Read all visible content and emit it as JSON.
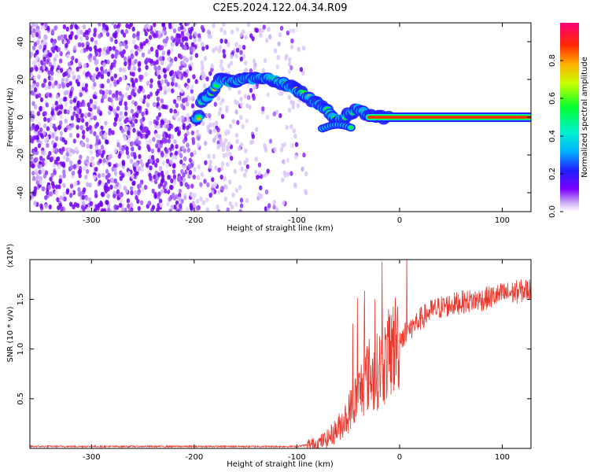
{
  "chart_data": [
    {
      "type": "heatmap",
      "title": "C2E5.2024.122.04.34.R09",
      "xlabel": "Height of straight line (km)",
      "ylabel": "Frequency (Hz)",
      "xlim": [
        -360,
        128
      ],
      "ylim": [
        -50,
        50
      ],
      "xticks": [
        -300,
        -200,
        -100,
        0,
        100
      ],
      "yticks": [
        -40,
        -20,
        0,
        20,
        40
      ],
      "colorbar": {
        "label": "Normalized spectral amplitude",
        "range": [
          0,
          1
        ],
        "ticks": [
          0.0,
          0.2,
          0.4,
          0.6,
          0.8
        ]
      },
      "ridge": {
        "x": [
          -195,
          -185,
          -175,
          -165,
          -150,
          -135,
          -120,
          -105,
          -90,
          -80,
          -70,
          -60,
          -50,
          -40,
          -30,
          -20,
          -10,
          0,
          20,
          40,
          60,
          80,
          100,
          128
        ],
        "y": [
          8,
          12,
          20,
          19,
          20,
          21,
          19,
          16,
          11,
          7,
          3,
          -3,
          2,
          4,
          1,
          0,
          0,
          0,
          0,
          0,
          0,
          0,
          0,
          0
        ]
      }
    },
    {
      "type": "line",
      "xlabel": "Height of straight line (km)",
      "ylabel": "SNR (10 * v/v)",
      "scale_note": "(x10⁴)",
      "xlim": [
        -360,
        128
      ],
      "ylim": [
        0,
        1.9
      ],
      "xticks": [
        -300,
        -200,
        -100,
        0,
        100
      ],
      "yticks": [
        0.5,
        1.0,
        1.5
      ],
      "series": [
        {
          "color": "#e8392f",
          "x": [
            -360,
            -300,
            -200,
            -150,
            -100,
            -80,
            -70,
            -60,
            -50,
            -45,
            -40,
            -35,
            -30,
            -25,
            -20,
            -15,
            -10,
            -5,
            0,
            10,
            20,
            30,
            40,
            60,
            80,
            100,
            128
          ],
          "y": [
            0.02,
            0.02,
            0.02,
            0.02,
            0.02,
            0.05,
            0.1,
            0.2,
            0.35,
            0.45,
            0.55,
            0.65,
            0.75,
            0.72,
            0.8,
            0.85,
            0.95,
            1.05,
            1.1,
            1.2,
            1.3,
            1.38,
            1.42,
            1.47,
            1.5,
            1.55,
            1.6
          ]
        }
      ]
    }
  ]
}
